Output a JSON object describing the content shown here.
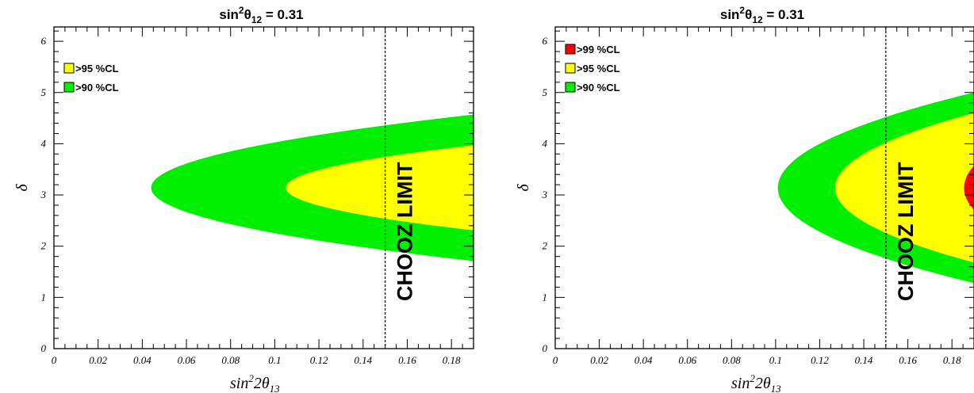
{
  "chart_data": [
    {
      "type": "area",
      "title": {
        "base": "sin",
        "sup": "2",
        "theta": "θ",
        "sub": "12",
        "rest": " = 0.31"
      },
      "xlabel": {
        "base": "sin",
        "sup": "2",
        "mid": "2θ",
        "sub": "13"
      },
      "ylabel": "δ",
      "xlim": [
        0,
        0.19
      ],
      "ylim": [
        0,
        6.28
      ],
      "x_ticks": [
        "0",
        "0.02",
        "0.04",
        "0.06",
        "0.08",
        "0.1",
        "0.12",
        "0.14",
        "0.16",
        "0.18"
      ],
      "y_ticks": [
        "0",
        "1",
        "2",
        "3",
        "4",
        "5",
        "6"
      ],
      "legend": [
        {
          "label": ">95 %CL",
          "color": "#ffff00"
        },
        {
          "label": ">90 %CL",
          "color": "#00ee00"
        }
      ],
      "legend_position": "top-left",
      "vline": {
        "x": 0.15,
        "label": "CHOOZ LIMIT",
        "style": "dotted"
      },
      "regions": [
        {
          "name": ">90 %CL",
          "color": "#00ee00",
          "x_min": 0.044,
          "delta_center": 3.14,
          "delta_half_width_at_xmax": 1.43
        },
        {
          "name": ">95 %CL",
          "color": "#ffff00",
          "x_min": 0.105,
          "delta_center": 3.14,
          "delta_half_width_at_xmax": 0.83
        }
      ]
    },
    {
      "type": "area",
      "title": {
        "base": "sin",
        "sup": "2",
        "theta": "θ",
        "sub": "12",
        "rest": " = 0.31"
      },
      "xlabel": {
        "base": "sin",
        "sup": "2",
        "mid": "2θ",
        "sub": "13"
      },
      "ylabel": "δ",
      "xlim": [
        0,
        0.19
      ],
      "ylim": [
        0,
        6.28
      ],
      "x_ticks": [
        "0",
        "0.02",
        "0.04",
        "0.06",
        "0.08",
        "0.1",
        "0.12",
        "0.14",
        "0.16",
        "0.18"
      ],
      "y_ticks": [
        "0",
        "1",
        "2",
        "3",
        "4",
        "5",
        "6"
      ],
      "legend": [
        {
          "label": ">99 %CL",
          "color": "#ff0000"
        },
        {
          "label": ">95 %CL",
          "color": "#ffff00"
        },
        {
          "label": ">90 %CL",
          "color": "#00ee00"
        }
      ],
      "legend_position": "top-left",
      "vline": {
        "x": 0.15,
        "label": "CHOOZ LIMIT",
        "style": "dotted"
      },
      "regions": [
        {
          "name": ">90 %CL",
          "color": "#00ee00",
          "x_min": 0.101,
          "delta_center": 3.14,
          "delta_half_width_at_xmax": 1.86
        },
        {
          "name": ">95 %CL",
          "color": "#ffff00",
          "x_min": 0.127,
          "delta_center": 3.14,
          "delta_half_width_at_xmax": 1.46
        },
        {
          "name": ">99 %CL",
          "color": "#ff0000",
          "x_min": 0.1855,
          "delta_center": 3.14,
          "delta_half_width_at_xmax": 0.43
        }
      ]
    }
  ]
}
